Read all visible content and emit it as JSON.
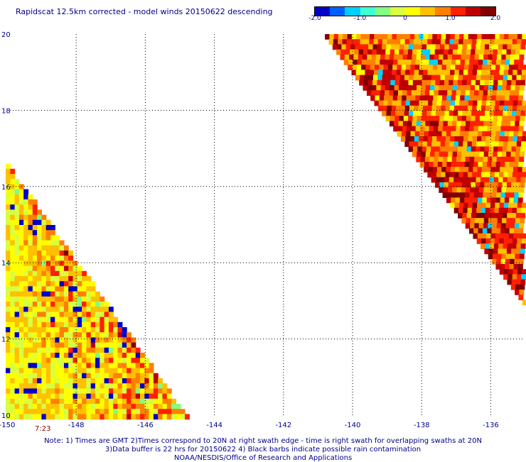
{
  "title": "Rapidscat 12.5km corrected - model winds 20150622 descending",
  "colorbar": {
    "ticks": [
      "-2.0",
      "-1.0",
      "0",
      "1.0",
      "2.0"
    ],
    "tick_values": [
      -2.0,
      -1.0,
      0,
      1.0,
      2.0
    ],
    "range": [
      -2.0,
      2.0
    ],
    "colors": [
      "#0000c8",
      "#0060ff",
      "#00d0ff",
      "#40ffd0",
      "#80ff80",
      "#d8ff40",
      "#ffff00",
      "#ffc000",
      "#ff8000",
      "#ff2000",
      "#c00000",
      "#800000"
    ]
  },
  "chart_data": {
    "type": "heatmap",
    "title": "Rapidscat 12.5km corrected - model winds 20150622 descending",
    "x_range": [
      -150,
      -135
    ],
    "y_range": [
      10,
      20
    ],
    "x_ticks": [
      -150,
      -148,
      -146,
      -144,
      -142,
      -140,
      -138,
      -136
    ],
    "x_tick_labels": [
      "-150",
      "-148",
      "-146",
      "-144",
      "-142",
      "-140",
      "-138",
      "-136"
    ],
    "y_ticks": [
      10,
      12,
      14,
      16,
      18,
      20
    ],
    "y_tick_labels": [
      "10",
      "12",
      "14",
      "16",
      "18",
      "20"
    ],
    "grid": true,
    "value_range": [
      -2.0,
      2.0
    ],
    "swaths": [
      {
        "time_label": "7:23",
        "edge": [
          [
            -150,
            16.6
          ],
          [
            -144.8,
            10.0
          ]
        ],
        "side": "left"
      },
      {
        "edge": [
          [
            -140.8,
            20.0
          ],
          [
            -134.9,
            12.8
          ]
        ],
        "side": "right"
      }
    ]
  },
  "time_label": "7:23",
  "notes": [
    "Note: 1) Times are GMT 2)Times correspond to 20N at right swath edge - time is right swath for overlapping swaths at 20N",
    "3)Data buffer is 22 hrs for 20150622 4) Black barbs indicate possible rain contamination",
    "NOAA/NESDIS/Office of Research and Applications"
  ]
}
